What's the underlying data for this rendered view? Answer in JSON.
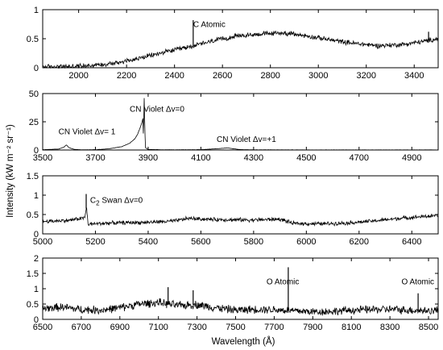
{
  "figure": {
    "ylabel": "Intensity (kW m⁻² sr⁻¹)",
    "xlabel": "Wavelength (Å)"
  },
  "chart_data": [
    {
      "type": "line",
      "xlim": [
        1850,
        3500
      ],
      "ylim": [
        0,
        1
      ],
      "xticks": [
        2000,
        2200,
        2400,
        2600,
        2800,
        3000,
        3200,
        3400
      ],
      "yticks": [
        0,
        0.5,
        1
      ],
      "series": [
        {
          "x": [
            1850,
            1950,
            2050,
            2150,
            2250,
            2350,
            2450,
            2550,
            2650,
            2750,
            2850,
            2950,
            3050,
            3150,
            3250,
            3350,
            3450,
            3500
          ],
          "values": [
            0.02,
            0.02,
            0.04,
            0.08,
            0.16,
            0.26,
            0.35,
            0.45,
            0.54,
            0.58,
            0.6,
            0.55,
            0.48,
            0.42,
            0.38,
            0.4,
            0.46,
            0.5
          ],
          "noise": 0.05,
          "peaks": [
            [
              2478,
              0.82
            ],
            [
              3460,
              0.62
            ]
          ]
        }
      ],
      "annotations": [
        {
          "text": "C Atomic",
          "x": 2478,
          "y": 0.7
        }
      ]
    },
    {
      "type": "line",
      "xlim": [
        3500,
        5000
      ],
      "ylim": [
        0,
        50
      ],
      "xticks": [
        3500,
        3700,
        3900,
        4100,
        4300,
        4500,
        4700,
        4900
      ],
      "yticks": [
        0,
        25,
        50
      ],
      "series": [
        {
          "x": [
            3500,
            3560,
            3580,
            3590,
            3600,
            3620,
            3650,
            3700,
            3750,
            3800,
            3830,
            3850,
            3860,
            3870,
            3876,
            3880,
            3882,
            3885,
            3888,
            3890,
            3900,
            3950,
            4000,
            4100,
            4150,
            4200,
            4220,
            4250,
            4300,
            4500,
            4700,
            4900,
            5000
          ],
          "values": [
            0.3,
            0.8,
            2.5,
            4.5,
            2.0,
            0.6,
            0.2,
            0.3,
            1.0,
            3.0,
            6.0,
            10.0,
            14.0,
            20.0,
            24.0,
            28.0,
            12.0,
            46.0,
            14.0,
            2.0,
            0.5,
            0.2,
            0.2,
            0.3,
            1.0,
            1.8,
            1.2,
            0.4,
            0.2,
            0.1,
            0.1,
            0.1,
            0.1
          ],
          "noise": 0.15,
          "peaks": []
        }
      ],
      "annotations": [
        {
          "text": "CN Violet Δv=0",
          "x": 3830,
          "y": 34
        },
        {
          "text": "CN Violet Δv= 1",
          "x": 3560,
          "y": 14
        },
        {
          "text": "CN Violet Δv=+1",
          "x": 4160,
          "y": 7
        }
      ]
    },
    {
      "type": "line",
      "xlim": [
        5000,
        6500
      ],
      "ylim": [
        0,
        1.5
      ],
      "xticks": [
        5000,
        5200,
        5400,
        5600,
        5800,
        6000,
        6200,
        6400
      ],
      "yticks": [
        0,
        0.5,
        1,
        1.5
      ],
      "series": [
        {
          "x": [
            5000,
            5100,
            5160,
            5166,
            5172,
            5250,
            5400,
            5500,
            5550,
            5650,
            5800,
            5900,
            5950,
            6050,
            6150,
            6250,
            6350,
            6450,
            6500
          ],
          "values": [
            0.32,
            0.35,
            0.42,
            0.7,
            0.25,
            0.28,
            0.3,
            0.33,
            0.4,
            0.37,
            0.36,
            0.38,
            0.27,
            0.26,
            0.28,
            0.33,
            0.4,
            0.45,
            0.47
          ],
          "noise": 0.06,
          "peaks": [
            [
              5165,
              1.03
            ]
          ]
        }
      ],
      "annotations": [
        {
          "text": "C",
          "x": 5180,
          "y": 0.8,
          "subscript": "2",
          "rest": " Swan Δv=0"
        }
      ]
    },
    {
      "type": "line",
      "xlim": [
        6500,
        8550
      ],
      "ylim": [
        0,
        2
      ],
      "xticks": [
        6500,
        6700,
        6900,
        7100,
        7300,
        7500,
        7700,
        7900,
        8100,
        8300,
        8500
      ],
      "yticks": [
        0,
        0.5,
        1,
        1.5,
        2
      ],
      "series": [
        {
          "x": [
            6500,
            6600,
            6700,
            6800,
            6900,
            7000,
            7100,
            7200,
            7300,
            7400,
            7500,
            7600,
            7700,
            7750,
            7800,
            7900,
            8000,
            8100,
            8200,
            8300,
            8400,
            8500,
            8550
          ],
          "values": [
            0.35,
            0.4,
            0.32,
            0.3,
            0.38,
            0.5,
            0.55,
            0.45,
            0.48,
            0.38,
            0.3,
            0.33,
            0.32,
            0.3,
            0.28,
            0.25,
            0.26,
            0.3,
            0.32,
            0.33,
            0.3,
            0.28,
            0.3
          ],
          "noise": 0.16,
          "peaks": [
            [
              7773,
              1.7
            ],
            [
              8446,
              0.85
            ],
            [
              7150,
              1.05
            ],
            [
              7280,
              0.95
            ]
          ]
        }
      ],
      "annotations": [
        {
          "text": "O Atomic",
          "x": 7660,
          "y": 1.15
        },
        {
          "text": "O Atomic",
          "x": 8360,
          "y": 1.15
        }
      ]
    }
  ]
}
